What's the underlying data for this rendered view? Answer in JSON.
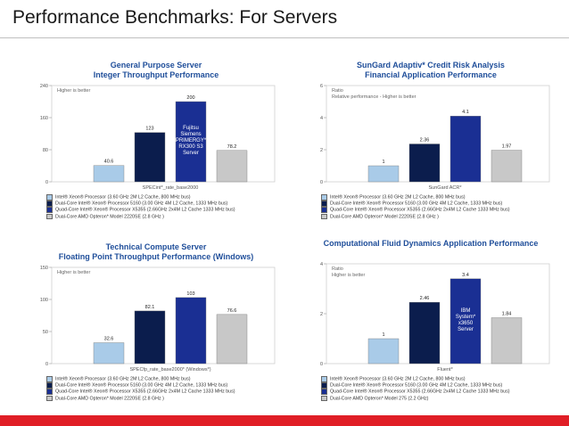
{
  "slide": {
    "title": "Performance Benchmarks: For Servers"
  },
  "colors": {
    "accent_bar": "#e01e26",
    "title_blue": "#1f4e9a"
  },
  "chart_data": [
    {
      "type": "bar",
      "title": "General Purpose Server",
      "subtitle": "Integer Throughput Performance",
      "note": "Higher is better",
      "xlabel": "SPECint*_rate_base2000",
      "ylim": [
        0,
        240
      ],
      "yticks": [
        0,
        80,
        160,
        240
      ],
      "values": [
        40.6,
        123,
        200,
        78.2
      ],
      "value_labels": [
        "40.6",
        "123",
        "200",
        "78.2"
      ],
      "colors": [
        "#a9cbe8",
        "#0b1d4d",
        "#1a2f93",
        "#c8c8c8"
      ],
      "bar_label": {
        "index": 2,
        "lines": [
          "Fujitsu",
          "Siemens",
          "PRIMERGY*",
          "RX300 S3",
          "Server"
        ]
      },
      "legend": [
        "Intel® Xeon® Processor (3.60 GHz 2M L2 Cache, 800 MHz bus)",
        "Dual-Core Intel® Xeon® Processor 5160 (3.00 GHz 4M L2 Cache, 1333 MHz bus)",
        "Quad-Core Intel® Xeon® Processor X5355 (2.66GHz 2x4M L2 Cache 1333 MHz bus)",
        "Dual-Core AMD Opteron* Model 2220SE (2.8 GHz )"
      ]
    },
    {
      "type": "bar",
      "title": "SunGard Adaptiv* Credit Risk Analysis",
      "subtitle": "Financial Application Performance",
      "note": "Ratio",
      "note2": "Relative performance - Higher is better",
      "xlabel": "SunGard ACR*",
      "ylim": [
        0,
        6
      ],
      "yticks": [
        0,
        2,
        4,
        6
      ],
      "values": [
        1,
        2.36,
        4.1,
        1.97
      ],
      "value_labels": [
        "1",
        "2.36",
        "4.1",
        "1.97"
      ],
      "colors": [
        "#a9cbe8",
        "#0b1d4d",
        "#1a2f93",
        "#c8c8c8"
      ],
      "legend": [
        "Intel® Xeon® Processor (3.60 GHz 2M L2 Cache, 800 MHz bus)",
        "Dual-Core Intel® Xeon® Processor 5160 (3.00 GHz 4M L2 Cache, 1333 MHz bus)",
        "Quad-Core Intel® Xeon® Processor X5355 (2.66GHz 2x4M L2 Cache 1333 MHz bus)",
        "Dual-Core AMD Opteron* Model 2220SE (2.8 GHz )"
      ]
    },
    {
      "type": "bar",
      "title": "Technical Compute Server",
      "subtitle": "Floating Point Throughput Performance (Windows)",
      "note": "Higher is better",
      "xlabel": "SPECfp_rate_base2000* (Windows*)",
      "ylim": [
        0,
        150
      ],
      "yticks": [
        0,
        50,
        100,
        150
      ],
      "values": [
        32.6,
        82.1,
        103,
        76.6
      ],
      "value_labels": [
        "32.6",
        "82.1",
        "103",
        "76.6"
      ],
      "colors": [
        "#a9cbe8",
        "#0b1d4d",
        "#1a2f93",
        "#c8c8c8"
      ],
      "legend": [
        "Intel® Xeon® Processor (3.60 GHz 2M L2 Cache, 800 MHz bus)",
        "Dual-Core Intel® Xeon® Processor 5160 (3.00 GHz 4M L2 Cache, 1333 MHz bus)",
        "Quad-Core Intel® Xeon® Processor X5355 (2.66GHz 2x4M L2 Cache 1333 MHz bus)",
        "Dual-Core AMD Opteron* Model 2220SE (2.8 GHz )"
      ]
    },
    {
      "type": "bar",
      "title": "Computational Fluid Dynamics Application Performance",
      "subtitle": "",
      "note": "Ratio",
      "note2": "Higher is better",
      "xlabel": "Fluent*",
      "ylim": [
        0,
        4
      ],
      "yticks": [
        0,
        2,
        4
      ],
      "values": [
        1,
        2.46,
        3.4,
        1.84
      ],
      "value_labels": [
        "1",
        "2.46",
        "3.4",
        "1.84"
      ],
      "colors": [
        "#a9cbe8",
        "#0b1d4d",
        "#1a2f93",
        "#c8c8c8"
      ],
      "bar_label": {
        "index": 2,
        "lines": [
          "IBM",
          "System*",
          "x3650",
          "Server"
        ]
      },
      "legend": [
        "Intel® Xeon® Processor (3.60 GHz 2M L2 Cache, 800 MHz bus)",
        "Dual-Core Intel® Xeon® Processor 5160 (3.00 GHz 4M L2 Cache, 1333 MHz bus)",
        "Quad-Core Intel® Xeon® Processor X5355 (2.66GHz 2x4M L2 Cache 1333 MHz bus)",
        "Dual-Core AMD Opteron* Model 275 (2.2 GHz)"
      ]
    }
  ]
}
